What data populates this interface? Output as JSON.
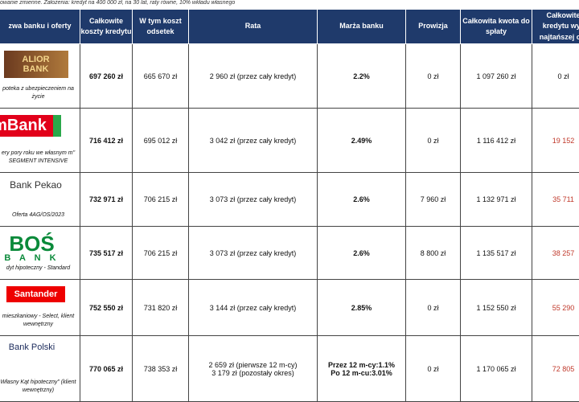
{
  "note": "owanie zmienne. Założenia: kredyt na 400 000 zł, na 30 lat, raty równe, 10% wkładu własnego",
  "table": {
    "headers": [
      [
        "zwa banku i oferty"
      ],
      [
        "Całkowite",
        "koszty kredytu"
      ],
      [
        "W tym koszt",
        "odsetek"
      ],
      [
        "Rata"
      ],
      [
        "Marża banku"
      ],
      [
        "Prowizja"
      ],
      [
        "Całkowita kwota do",
        "spłaty"
      ],
      [
        "Całkowite",
        "kredytu wyż",
        "najtańszej ofe"
      ]
    ],
    "rows": [
      {
        "logo": [
          "ALIOR",
          "BANK"
        ],
        "offer": [
          "poteka z ubezpieczeniem na życie"
        ],
        "cells": [
          [
            "697 260 zł"
          ],
          [
            "665 670 zł"
          ],
          [
            "2 960 zł (przez cały kredyt)"
          ],
          [
            "2.2%"
          ],
          [
            "0 zł"
          ],
          [
            "1 097 260 zł"
          ],
          [
            "0 zł"
          ]
        ]
      },
      {
        "logo": [
          "mBank"
        ],
        "offer": [
          "ery pory roku we własnym m\"",
          "SEGMENT INTENSIVE"
        ],
        "cells": [
          [
            "716 412 zł"
          ],
          [
            "695 012 zł"
          ],
          [
            "3 042 zł (przez cały kredyt)"
          ],
          [
            "2.49%"
          ],
          [
            "0 zł"
          ],
          [
            "1 116 412 zł"
          ],
          [
            "19 152"
          ]
        ]
      },
      {
        "logo": [
          "Bank Pekao"
        ],
        "offer": [
          "Oferta 4AG/OS/2023"
        ],
        "cells": [
          [
            "732 971 zł"
          ],
          [
            "706 215 zł"
          ],
          [
            "3 073 zł (przez cały kredyt)"
          ],
          [
            "2.6%"
          ],
          [
            "7 960 zł"
          ],
          [
            "1 132 971 zł"
          ],
          [
            "35 711"
          ]
        ]
      },
      {
        "logo": [
          "BOŚ",
          "B A N K"
        ],
        "offer": [
          "dyt hipoteczny - Standard"
        ],
        "cells": [
          [
            "735 517 zł"
          ],
          [
            "706 215 zł"
          ],
          [
            "3 073 zł (przez cały kredyt)"
          ],
          [
            "2.6%"
          ],
          [
            "8 800 zł"
          ],
          [
            "1 135 517 zł"
          ],
          [
            "38 257"
          ]
        ]
      },
      {
        "logo": [
          "Santander"
        ],
        "offer": [
          "mieszkaniowy - Select, klient",
          "wewnętrzny"
        ],
        "cells": [
          [
            "752 550 zł"
          ],
          [
            "731 820 zł"
          ],
          [
            "3 144 zł (przez cały kredyt)"
          ],
          [
            "2.85%"
          ],
          [
            "0 zł"
          ],
          [
            "1 152 550 zł"
          ],
          [
            "55 290"
          ]
        ]
      },
      {
        "logo": [
          "Bank Polski"
        ],
        "offer": [
          "Własny Kąt hipoteczny\" (klient",
          "wewnętrzny)"
        ],
        "cells": [
          [
            "770 065 zł"
          ],
          [
            "738 353 zł"
          ],
          [
            "2 659 zł (pierwsze 12 m-cy)",
            "3 179 zł (pozostały okres)"
          ],
          [
            "Przez 12 m-cy:1.1%",
            "Po 12 m-cu:3.01%"
          ],
          [
            "0 zł"
          ],
          [
            "1 170 065 zł"
          ],
          [
            "72 805"
          ]
        ]
      }
    ]
  }
}
